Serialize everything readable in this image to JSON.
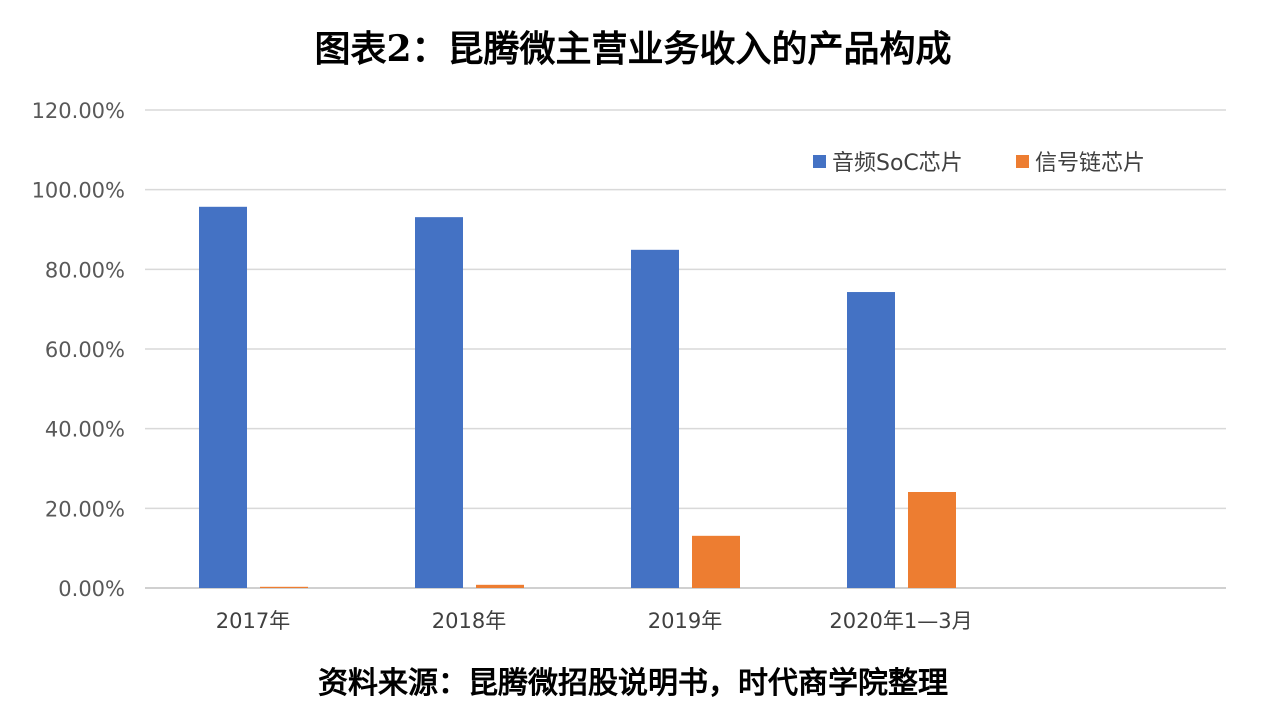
{
  "title": "图表2：昆腾微主营业务收入的产品构成",
  "source": "资料来源：昆腾微招股说明书，时代商学院整理",
  "chart_data": {
    "type": "bar",
    "title": "图表2：昆腾微主营业务收入的产品构成",
    "xlabel": "",
    "ylabel": "",
    "categories": [
      "2017年",
      "2018年",
      "2019年",
      "2020年1—3月"
    ],
    "series": [
      {
        "name": "音频SoC芯片",
        "color": "#4472C4",
        "values": [
          95.7,
          93.1,
          84.9,
          74.3
        ]
      },
      {
        "name": "信号链芯片",
        "color": "#ED7D31",
        "values": [
          0.3,
          0.8,
          13.1,
          24.1
        ]
      }
    ],
    "ylim": [
      0,
      120
    ],
    "yticks": [
      "0.00%",
      "20.00%",
      "40.00%",
      "60.00%",
      "80.00%",
      "100.00%",
      "120.00%"
    ],
    "grid": true,
    "legend": "top-right",
    "unit": "%"
  }
}
